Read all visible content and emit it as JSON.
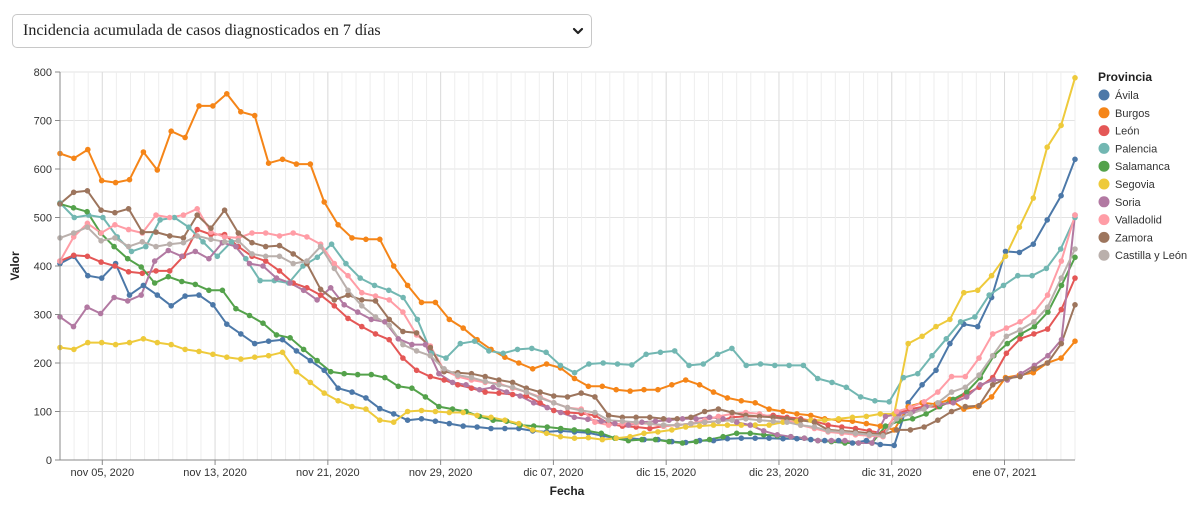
{
  "selector": {
    "selected": "Incidencia acumulada de casos diagnosticados en 7 días",
    "icon": "chevron-down-icon"
  },
  "chart_data": {
    "type": "line",
    "xlabel": "Fecha",
    "ylabel": "Valor",
    "ylim": [
      0,
      800
    ],
    "yticks": [
      0,
      100,
      200,
      300,
      400,
      500,
      600,
      700,
      800
    ],
    "x_tick_labels": [
      "nov 05, 2020",
      "nov 13, 2020",
      "nov 21, 2020",
      "nov 29, 2020",
      "dic 07, 2020",
      "dic 15, 2020",
      "dic 23, 2020",
      "dic 31, 2020",
      "ene 07, 2021"
    ],
    "x_range": [
      "2020-11-02",
      "2021-01-13"
    ],
    "grid": true,
    "legend": {
      "title": "Provincia",
      "placement": "right"
    },
    "series": [
      {
        "name": "Ávila",
        "color": "#4c78a8",
        "values": [
          405,
          420,
          380,
          375,
          405,
          340,
          360,
          340,
          318,
          338,
          340,
          320,
          280,
          260,
          240,
          245,
          248,
          225,
          205,
          185,
          148,
          140,
          128,
          106,
          95,
          82,
          85,
          80,
          75,
          70,
          68,
          65,
          65,
          65,
          60,
          58,
          60,
          58,
          56,
          50,
          45,
          45,
          42,
          42,
          38,
          36,
          40,
          40,
          44,
          45,
          45,
          45,
          44,
          44,
          42,
          40,
          40,
          35,
          40,
          32,
          30,
          118,
          155,
          185,
          240,
          280,
          275,
          335,
          430,
          428,
          445,
          495,
          545,
          620
        ]
      },
      {
        "name": "Burgos",
        "color": "#f58518",
        "values": [
          632,
          622,
          640,
          576,
          572,
          578,
          635,
          598,
          678,
          665,
          730,
          730,
          755,
          718,
          710,
          612,
          620,
          610,
          610,
          532,
          485,
          458,
          455,
          455,
          400,
          360,
          325,
          325,
          290,
          272,
          248,
          228,
          212,
          200,
          188,
          198,
          190,
          168,
          152,
          152,
          145,
          142,
          145,
          145,
          155,
          165,
          155,
          140,
          128,
          122,
          118,
          105,
          100,
          95,
          92,
          85,
          82,
          80,
          75,
          70,
          62,
          110,
          118,
          115,
          125,
          105,
          110,
          130,
          170,
          175,
          180,
          200,
          210,
          245
        ]
      },
      {
        "name": "León",
        "color": "#e45756",
        "values": [
          410,
          422,
          420,
          408,
          400,
          388,
          385,
          390,
          390,
          420,
          475,
          465,
          465,
          440,
          420,
          410,
          390,
          365,
          355,
          340,
          318,
          292,
          275,
          260,
          248,
          210,
          185,
          172,
          165,
          155,
          148,
          140,
          138,
          135,
          132,
          118,
          102,
          98,
          96,
          92,
          75,
          70,
          68,
          65,
          70,
          72,
          75,
          78,
          80,
          88,
          90,
          90,
          92,
          88,
          85,
          80,
          72,
          68,
          65,
          60,
          55,
          95,
          105,
          110,
          110,
          120,
          135,
          150,
          170,
          220,
          250,
          260,
          270,
          310,
          375
        ]
      },
      {
        "name": "Palencia",
        "color": "#72b7b2",
        "values": [
          530,
          500,
          505,
          500,
          460,
          430,
          440,
          495,
          500,
          480,
          450,
          420,
          450,
          415,
          370,
          370,
          365,
          400,
          418,
          445,
          405,
          375,
          360,
          350,
          335,
          290,
          220,
          210,
          240,
          245,
          225,
          220,
          228,
          230,
          222,
          195,
          180,
          198,
          200,
          198,
          196,
          218,
          222,
          225,
          195,
          198,
          218,
          230,
          195,
          198,
          195,
          195,
          195,
          168,
          160,
          150,
          130,
          122,
          120,
          170,
          178,
          215,
          250,
          285,
          295,
          340,
          360,
          380,
          380,
          395,
          435,
          500
        ]
      },
      {
        "name": "Salamanca",
        "color": "#54a24b",
        "values": [
          528,
          520,
          512,
          468,
          440,
          415,
          398,
          365,
          378,
          368,
          362,
          350,
          350,
          312,
          298,
          282,
          258,
          252,
          228,
          205,
          182,
          178,
          176,
          176,
          170,
          152,
          148,
          130,
          110,
          105,
          100,
          90,
          82,
          80,
          72,
          70,
          68,
          65,
          62,
          60,
          55,
          45,
          40,
          42,
          42,
          38,
          35,
          38,
          42,
          48,
          55,
          55,
          52,
          50,
          48,
          45,
          40,
          38,
          35,
          35,
          35,
          70,
          80,
          85,
          95,
          110,
          125,
          140,
          170,
          215,
          240,
          260,
          275,
          305,
          360,
          418
        ]
      },
      {
        "name": "Segovia",
        "color": "#eeca3b",
        "values": [
          232,
          228,
          242,
          242,
          238,
          242,
          250,
          242,
          238,
          228,
          224,
          218,
          212,
          208,
          212,
          215,
          222,
          182,
          160,
          138,
          122,
          110,
          105,
          82,
          78,
          100,
          102,
          100,
          98,
          98,
          92,
          88,
          82,
          75,
          62,
          55,
          48,
          45,
          46,
          42,
          45,
          48,
          55,
          58,
          62,
          68,
          70,
          72,
          72,
          72,
          72,
          72,
          78,
          80,
          82,
          82,
          85,
          88,
          90,
          95,
          95,
          240,
          255,
          275,
          290,
          345,
          350,
          380,
          420,
          480,
          540,
          645,
          690,
          788
        ]
      },
      {
        "name": "Soria",
        "color": "#b279a2",
        "values": [
          295,
          275,
          315,
          302,
          335,
          328,
          340,
          410,
          432,
          420,
          430,
          415,
          448,
          440,
          405,
          400,
          375,
          365,
          350,
          330,
          355,
          320,
          305,
          290,
          285,
          250,
          238,
          238,
          178,
          160,
          155,
          145,
          150,
          140,
          132,
          118,
          108,
          98,
          88,
          84,
          80,
          75,
          72,
          78,
          80,
          82,
          85,
          85,
          88,
          85,
          78,
          72,
          60,
          52,
          48,
          45,
          40,
          40,
          40,
          35,
          35,
          90,
          95,
          100,
          110,
          115,
          118,
          130,
          155,
          165,
          165,
          178,
          195,
          215,
          248,
          505
        ]
      },
      {
        "name": "Valladolid",
        "color": "#ff9da6",
        "values": [
          410,
          460,
          488,
          468,
          485,
          475,
          468,
          505,
          500,
          505,
          518,
          470,
          460,
          458,
          468,
          468,
          462,
          468,
          460,
          445,
          405,
          380,
          345,
          338,
          330,
          305,
          258,
          235,
          185,
          172,
          165,
          160,
          158,
          148,
          140,
          130,
          118,
          108,
          105,
          78,
          72,
          75,
          75,
          75,
          70,
          72,
          75,
          82,
          90,
          95,
          98,
          95,
          88,
          82,
          72,
          65,
          58,
          55,
          52,
          50,
          48,
          100,
          108,
          120,
          140,
          172,
          172,
          210,
          260,
          272,
          285,
          305,
          340,
          410,
          505
        ]
      },
      {
        "name": "Zamora",
        "color": "#9d755d",
        "values": [
          528,
          552,
          555,
          515,
          510,
          518,
          470,
          470,
          462,
          458,
          505,
          478,
          515,
          468,
          448,
          440,
          442,
          425,
          405,
          352,
          330,
          340,
          330,
          328,
          290,
          265,
          262,
          232,
          182,
          180,
          178,
          172,
          165,
          160,
          148,
          140,
          132,
          130,
          138,
          130,
          92,
          88,
          88,
          88,
          85,
          85,
          88,
          100,
          105,
          98,
          92,
          90,
          88,
          85,
          82,
          78,
          62,
          60,
          58,
          55,
          52,
          62,
          62,
          68,
          82,
          100,
          110,
          112,
          155,
          168,
          172,
          188,
          200,
          240,
          320
        ]
      },
      {
        "name": "Castilla y León",
        "color": "#bab0ac",
        "values": [
          458,
          468,
          480,
          452,
          458,
          440,
          450,
          440,
          445,
          448,
          462,
          455,
          450,
          452,
          425,
          420,
          420,
          405,
          410,
          440,
          395,
          350,
          318,
          295,
          278,
          238,
          225,
          215,
          188,
          175,
          170,
          162,
          155,
          150,
          140,
          128,
          118,
          108,
          102,
          98,
          82,
          80,
          78,
          75,
          72,
          72,
          75,
          78,
          80,
          82,
          85,
          82,
          80,
          78,
          72,
          68,
          60,
          58,
          55,
          52,
          50,
          85,
          95,
          105,
          118,
          140,
          150,
          175,
          215,
          255,
          268,
          285,
          315,
          375,
          435
        ]
      }
    ]
  }
}
